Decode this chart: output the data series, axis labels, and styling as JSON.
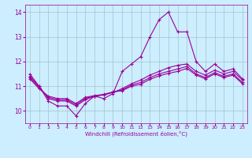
{
  "background_color": "#cceeff",
  "line_color": "#990099",
  "grid_color": "#99bbbb",
  "xlim": [
    -0.5,
    23.5
  ],
  "ylim": [
    9.5,
    14.3
  ],
  "yticks": [
    10,
    11,
    12,
    13,
    14
  ],
  "xticks": [
    0,
    1,
    2,
    3,
    4,
    5,
    6,
    7,
    8,
    9,
    10,
    11,
    12,
    13,
    14,
    15,
    16,
    17,
    18,
    19,
    20,
    21,
    22,
    23
  ],
  "xlabel": "Windchill (Refroidissement éolien,°C)",
  "line1_x": [
    0,
    1,
    2,
    3,
    4,
    5,
    6,
    7,
    8,
    9,
    10,
    11,
    12,
    13,
    14,
    15,
    16,
    17,
    18,
    19,
    20,
    21,
    22,
    23
  ],
  "line1_y": [
    11.5,
    11.0,
    10.4,
    10.2,
    10.2,
    9.8,
    10.3,
    10.6,
    10.5,
    10.7,
    11.6,
    11.9,
    12.2,
    13.0,
    13.7,
    14.0,
    13.2,
    13.2,
    12.0,
    11.6,
    11.9,
    11.6,
    11.7,
    11.3
  ],
  "line2_x": [
    0,
    1,
    2,
    3,
    4,
    5,
    6,
    7,
    8,
    9,
    10,
    11,
    12,
    13,
    14,
    15,
    16,
    17,
    18,
    19,
    20,
    21,
    22,
    23
  ],
  "line2_y": [
    11.4,
    11.0,
    10.5,
    10.4,
    10.4,
    10.2,
    10.45,
    10.6,
    10.65,
    10.75,
    10.9,
    11.1,
    11.25,
    11.45,
    11.6,
    11.75,
    11.85,
    11.9,
    11.6,
    11.45,
    11.65,
    11.5,
    11.6,
    11.25
  ],
  "line3_x": [
    0,
    1,
    2,
    3,
    4,
    5,
    6,
    7,
    8,
    9,
    10,
    11,
    12,
    13,
    14,
    15,
    16,
    17,
    18,
    19,
    20,
    21,
    22,
    23
  ],
  "line3_y": [
    11.35,
    10.95,
    10.55,
    10.45,
    10.45,
    10.25,
    10.5,
    10.6,
    10.65,
    10.75,
    10.85,
    11.05,
    11.15,
    11.35,
    11.5,
    11.6,
    11.7,
    11.8,
    11.5,
    11.35,
    11.55,
    11.4,
    11.5,
    11.15
  ],
  "line4_x": [
    0,
    1,
    2,
    3,
    4,
    5,
    6,
    7,
    8,
    9,
    10,
    11,
    12,
    13,
    14,
    15,
    16,
    17,
    18,
    19,
    20,
    21,
    22,
    23
  ],
  "line4_y": [
    11.3,
    10.9,
    10.6,
    10.5,
    10.5,
    10.3,
    10.55,
    10.62,
    10.67,
    10.77,
    10.82,
    11.0,
    11.08,
    11.28,
    11.42,
    11.52,
    11.6,
    11.72,
    11.45,
    11.3,
    11.5,
    11.35,
    11.45,
    11.1
  ]
}
